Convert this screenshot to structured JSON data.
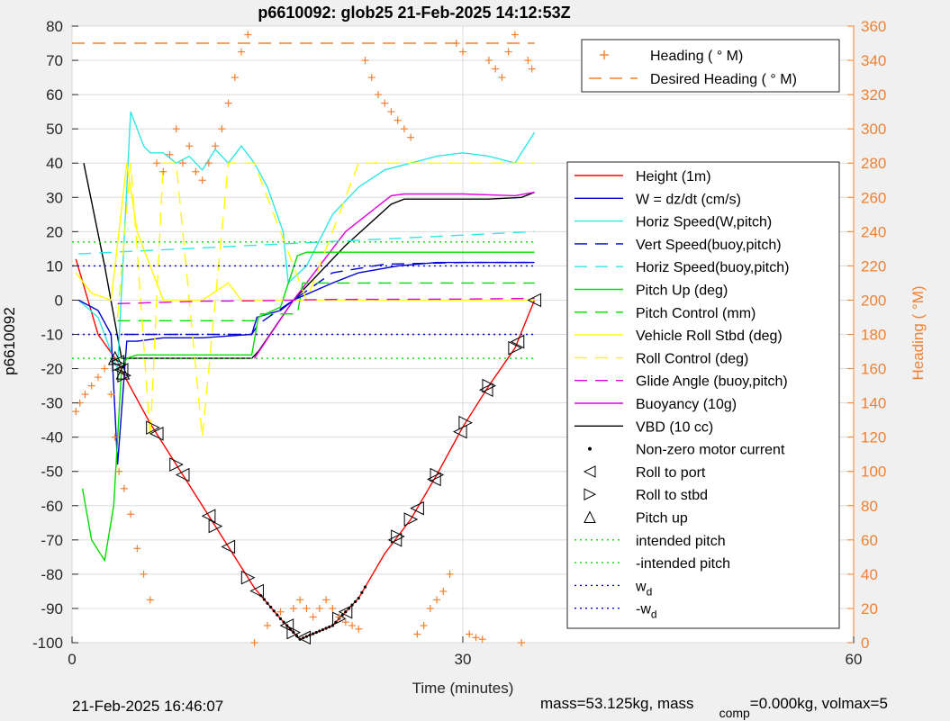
{
  "header": {
    "title": "p6610092: glob25 21-Feb-2025 14:12:53Z"
  },
  "footer": {
    "date": "21-Feb-2025 16:46:07",
    "mass_text": "mass=53.125kg, mass",
    "comp_sub": "comp",
    "comp_rest": "=0.000kg, volmax=5"
  },
  "colors": {
    "background": "#f0f0f0",
    "axes_bg": "#ffffff",
    "heading": "#f28030",
    "red": "#ff0000",
    "blue": "#0000d0",
    "cyan": "#2ee6e6",
    "green": "#00dd00",
    "yellow": "#ffff00",
    "magenta": "#e000e0",
    "black": "#000000"
  },
  "chart_data": {
    "type": "line",
    "title": "p6610092: glob25 21-Feb-2025 14:12:53Z",
    "xlabel": "Time (minutes)",
    "ylabel_left": "p6610092",
    "ylabel_right": "Heading (  °M)",
    "xlim": [
      0,
      60
    ],
    "ylim_left": [
      -100,
      80
    ],
    "ylim_right": [
      0,
      360
    ],
    "x_ticks": [
      "0",
      "30",
      "60"
    ],
    "y_ticks_left": [
      "80",
      "70",
      "60",
      "50",
      "40",
      "30",
      "20",
      "10",
      "0",
      "-10",
      "-20",
      "-30",
      "-40",
      "-50",
      "-60",
      "-70",
      "-80",
      "-90",
      "-100"
    ],
    "y_ticks_right": [
      "360",
      "340",
      "320",
      "300",
      "280",
      "260",
      "240",
      "220",
      "200",
      "180",
      "160",
      "140",
      "120",
      "100",
      "80",
      "60",
      "40",
      "20",
      "0"
    ],
    "grid": true,
    "legend_top": {
      "placement": "top-right",
      "entries": [
        {
          "label": "Heading (  ° M)",
          "style": "plus",
          "color": "#f28030"
        },
        {
          "label": "Desired Heading (    ° M)",
          "style": "dash",
          "color": "#f28030"
        }
      ]
    },
    "legend_main": {
      "placement": "right",
      "entries": [
        {
          "label": "Height (1m)",
          "style": "solid",
          "color": "#ff0000"
        },
        {
          "label": "W = dz/dt (cm/s)",
          "style": "solid",
          "color": "#0000d0"
        },
        {
          "label": "Horiz Speed(W,pitch)",
          "style": "solid",
          "color": "#2ee6e6"
        },
        {
          "label": "Vert Speed(buoy,pitch)",
          "style": "dash",
          "color": "#0000d0"
        },
        {
          "label": "Horiz Speed(buoy,pitch)",
          "style": "dash",
          "color": "#2ee6e6"
        },
        {
          "label": "Pitch Up (deg)",
          "style": "solid",
          "color": "#00dd00"
        },
        {
          "label": "Pitch Control (mm)",
          "style": "dash",
          "color": "#00dd00"
        },
        {
          "label": "Vehicle Roll Stbd (deg)",
          "style": "solid",
          "color": "#ffff00"
        },
        {
          "label": "Roll Control (deg)",
          "style": "dash",
          "color": "#ffff00"
        },
        {
          "label": "Glide Angle (buoy,pitch)",
          "style": "dash",
          "color": "#e000e0"
        },
        {
          "label": "Buoyancy (10g)",
          "style": "solid",
          "color": "#e000e0"
        },
        {
          "label": "VBD (10 cc)",
          "style": "solid",
          "color": "#000000"
        },
        {
          "label": "Non-zero motor current",
          "style": "dot",
          "color": "#000000"
        },
        {
          "label": "Roll to port",
          "style": "tri-left",
          "color": "#000000"
        },
        {
          "label": "Roll to stbd",
          "style": "tri-right",
          "color": "#000000"
        },
        {
          "label": "Pitch up",
          "style": "tri-up",
          "color": "#000000"
        },
        {
          "label": "intended pitch",
          "style": "dotted",
          "color": "#00dd00"
        },
        {
          "label": "-intended pitch",
          "style": "dotted",
          "color": "#00dd00"
        },
        {
          "label": "w",
          "sub": "d",
          "style": "dotted",
          "color": "#0000d0"
        },
        {
          "label": "-w",
          "sub": "d",
          "style": "dotted",
          "color": "#0000d0"
        }
      ]
    },
    "series": [
      {
        "name": "Height (1m)",
        "axis": "left",
        "style": "solid",
        "color": "#ff0000",
        "x": [
          0.3,
          2,
          3.5,
          4,
          6,
          8,
          10,
          12,
          14,
          16,
          17.5,
          20,
          22,
          24,
          26,
          28,
          30,
          32,
          34,
          35.5
        ],
        "y": [
          12,
          -10,
          -18,
          -22,
          -36,
          -48,
          -60,
          -72,
          -84,
          -93,
          -99,
          -95,
          -87,
          -74,
          -64,
          -51,
          -37,
          -25,
          -14,
          0
        ]
      },
      {
        "name": "VBD (10 cc)",
        "axis": "left",
        "style": "solid",
        "color": "#000000",
        "x": [
          0.9,
          2.5,
          3.8,
          5,
          10,
          13.8,
          14.3,
          17,
          21,
          24.5,
          25.5,
          32,
          34.5,
          35.5
        ],
        "y": [
          40,
          10,
          -17,
          -17,
          -17,
          -17,
          -15,
          0,
          16,
          28,
          29.5,
          29.5,
          30,
          31.5
        ]
      },
      {
        "name": "Buoyancy (10g)",
        "axis": "left",
        "style": "solid",
        "color": "#e000e0",
        "x": [
          14,
          17,
          21,
          24.5,
          25.5,
          30,
          34,
          35.5
        ],
        "y": [
          -17,
          0,
          20,
          30.5,
          31,
          31,
          30.5,
          31.5
        ]
      },
      {
        "name": "Horiz Speed(W,pitch)",
        "axis": "left",
        "style": "solid",
        "color": "#2ee6e6",
        "x": [
          0.5,
          2,
          3.5,
          4.5,
          5.5,
          6,
          7,
          8,
          9,
          10,
          11,
          12,
          13,
          14,
          15,
          16.2,
          16.6,
          18,
          20,
          22,
          24,
          26,
          28,
          30,
          32,
          34,
          35.5
        ],
        "y": [
          0,
          -5,
          -20,
          55,
          45,
          43,
          43,
          40,
          42,
          38,
          44,
          40,
          45,
          40,
          33,
          20,
          5,
          10,
          25,
          33,
          38,
          40,
          42,
          43,
          42,
          40,
          49
        ]
      },
      {
        "name": "W = dz/dt (cm/s)",
        "axis": "left",
        "style": "solid",
        "color": "#0000d0",
        "x": [
          0.5,
          2,
          3,
          3.5,
          4.2,
          5,
          7,
          10,
          13.8,
          14.2,
          16,
          17,
          20,
          22,
          25,
          28,
          30,
          33,
          35.5
        ],
        "y": [
          0,
          -3,
          -10,
          -48,
          -12,
          -12,
          -11,
          -11,
          -10,
          -5,
          -3,
          0,
          5,
          8,
          10,
          11,
          11,
          11,
          11
        ]
      },
      {
        "name": "Vert Speed(buoy,pitch)",
        "axis": "left",
        "style": "dash",
        "color": "#0000d0",
        "x": [
          4,
          13.8,
          14.3,
          17,
          20,
          24,
          30,
          35.5
        ],
        "y": [
          -10,
          -10,
          -7,
          0,
          8,
          10.5,
          11,
          11
        ]
      },
      {
        "name": "Horiz Speed(buoy,pitch)",
        "axis": "left",
        "style": "dash",
        "color": "#2ee6e6",
        "x": [
          0.5,
          35.5
        ],
        "y": [
          13.5,
          20
        ]
      },
      {
        "name": "Pitch Up (deg)",
        "axis": "left",
        "style": "solid",
        "color": "#00dd00",
        "x": [
          0.8,
          1.5,
          2.5,
          3.2,
          3.8,
          4.2,
          5,
          8,
          13.8,
          14.3,
          16,
          17.3,
          18,
          22,
          26,
          30,
          34,
          35.5
        ],
        "y": [
          -55,
          -70,
          -76,
          -60,
          -20,
          -17,
          -16,
          -16,
          -16,
          -5,
          -2,
          13,
          14,
          14,
          14,
          14,
          14,
          14
        ]
      },
      {
        "name": "Pitch Control (mm)",
        "axis": "left",
        "style": "dash",
        "color": "#00dd00",
        "x": [
          3.5,
          14,
          14.5,
          17.3,
          17.7,
          35.5
        ],
        "y": [
          -6,
          -6,
          -4,
          -4,
          5,
          5
        ]
      },
      {
        "name": "Vehicle Roll Stbd (deg)",
        "axis": "left",
        "style": "solid",
        "color": "#ffff00",
        "x": [
          0.3,
          1.5,
          3,
          4.2,
          5,
          6,
          7,
          8,
          10,
          12,
          13,
          15,
          17,
          20,
          23,
          26,
          30,
          32,
          34,
          35.5
        ],
        "y": [
          8,
          2,
          0,
          40,
          20,
          10,
          0,
          0,
          0,
          5,
          0,
          0,
          0,
          0,
          0,
          0,
          0,
          0,
          0,
          0
        ]
      },
      {
        "name": "Roll Control (deg)",
        "axis": "left",
        "style": "dash",
        "color": "#ffff00",
        "x": [
          3.5,
          4.5,
          5,
          6,
          7,
          8,
          10,
          12,
          14,
          18,
          22,
          26,
          30,
          35.5
        ],
        "y": [
          -5,
          40,
          15,
          -40,
          40,
          40,
          -40,
          40,
          40,
          0,
          40,
          40,
          40,
          40
        ]
      },
      {
        "name": "Glide Angle (buoy,pitch)",
        "axis": "left",
        "style": "dash",
        "color": "#e000e0",
        "x": [
          3.5,
          10,
          14,
          17,
          20,
          30,
          35.5
        ],
        "y": [
          -1,
          -0.3,
          -0.2,
          0,
          0.2,
          0.3,
          0.5
        ]
      },
      {
        "name": "intended pitch",
        "axis": "left",
        "style": "dotted",
        "color": "#00dd00",
        "x": [
          0,
          35.5
        ],
        "y": [
          17,
          17
        ]
      },
      {
        "name": "-intended pitch",
        "axis": "left",
        "style": "dotted",
        "color": "#00dd00",
        "x": [
          0,
          35.5
        ],
        "y": [
          -17,
          -17
        ]
      },
      {
        "name": "w_d",
        "axis": "left",
        "style": "dotted",
        "color": "#0000d0",
        "x": [
          0,
          35.5
        ],
        "y": [
          10,
          10
        ]
      },
      {
        "name": "-w_d",
        "axis": "left",
        "style": "dotted",
        "color": "#0000d0",
        "x": [
          0,
          35.5
        ],
        "y": [
          -10,
          -10
        ]
      },
      {
        "name": "Desired Heading (    ° M)",
        "axis": "right",
        "style": "dash",
        "color": "#f28030",
        "x": [
          0,
          35.5
        ],
        "y": [
          350,
          350
        ]
      }
    ],
    "heading_points": {
      "name": "Heading (  ° M)",
      "axis": "right",
      "x": [
        0.3,
        0.6,
        1.0,
        1.5,
        2.0,
        2.5,
        3.0,
        3.3,
        3.6,
        4.0,
        4.5,
        5.0,
        5.5,
        6.0,
        6.5,
        7.0,
        7.5,
        8.0,
        8.5,
        9.0,
        9.5,
        10.0,
        10.5,
        11.0,
        11.5,
        12.0,
        12.5,
        13.0,
        13.5,
        14.0,
        15.0,
        16.0,
        17.0,
        17.5,
        18.0,
        18.5,
        19.0,
        19.5,
        20.0,
        20.5,
        21.0,
        21.5,
        22.0,
        22.5,
        23.0,
        23.5,
        24.0,
        24.5,
        25.0,
        25.5,
        26.0,
        26.5,
        27.0,
        27.5,
        28.0,
        28.5,
        29.0,
        29.5,
        30.0,
        30.5,
        31.0,
        31.5,
        32.0,
        32.5,
        33.0,
        33.5,
        34.0,
        34.5,
        35.0,
        35.3
      ],
      "y": [
        135,
        140,
        145,
        150,
        155,
        160,
        145,
        120,
        100,
        90,
        75,
        55,
        40,
        25,
        280,
        275,
        285,
        300,
        280,
        290,
        275,
        270,
        280,
        290,
        300,
        315,
        330,
        345,
        355,
        0,
        10,
        18,
        20,
        25,
        20,
        15,
        20,
        25,
        20,
        15,
        12,
        10,
        8,
        340,
        330,
        320,
        315,
        310,
        305,
        300,
        295,
        5,
        10,
        20,
        25,
        30,
        40,
        350,
        345,
        5,
        3,
        2,
        340,
        335,
        330,
        345,
        355,
        0,
        340,
        335
      ]
    },
    "height_markers": {
      "roll_port_x": [
        3.5,
        3.8,
        6.5,
        8.5,
        10.5,
        12.0,
        14.2,
        16.5,
        17.8,
        21.0,
        24.8,
        26.5,
        27.8,
        29.8,
        31.8,
        34.2,
        35.5
      ],
      "roll_stbd_x": [
        3.6,
        4.0,
        6.2,
        8.0,
        11.0,
        13.5,
        17.0,
        20.5,
        25.0,
        26.0,
        28.0,
        30.2,
        32.0,
        34.0
      ],
      "pitch_up_x": [
        3.3,
        3.9
      ]
    }
  }
}
